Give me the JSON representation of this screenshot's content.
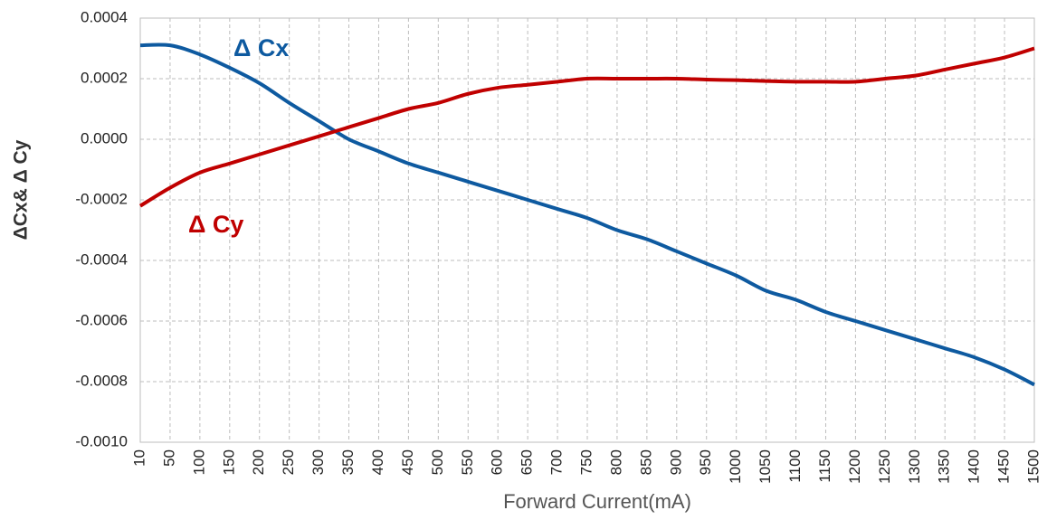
{
  "chart_data": {
    "type": "line",
    "x_label": "Forward Current(mA)",
    "y_label": "ΔCx& Δ Cy",
    "categories": [
      10,
      50,
      100,
      150,
      200,
      250,
      300,
      350,
      400,
      450,
      500,
      550,
      600,
      650,
      700,
      750,
      800,
      850,
      900,
      950,
      1000,
      1050,
      1100,
      1150,
      1200,
      1250,
      1300,
      1350,
      1400,
      1450,
      1500
    ],
    "series": [
      {
        "name": "Δ Cx",
        "color": "#0e5aa0",
        "values": [
          0.00031,
          0.00031,
          0.00028,
          0.000236,
          0.000185,
          0.00012,
          6e-05,
          0.0,
          -4e-05,
          -8e-05,
          -0.00011,
          -0.00014,
          -0.00017,
          -0.0002,
          -0.00023,
          -0.00026,
          -0.0003,
          -0.00033,
          -0.00037,
          -0.00041,
          -0.00045,
          -0.0005,
          -0.00053,
          -0.00057,
          -0.0006,
          -0.00063,
          -0.00066,
          -0.00069,
          -0.00072,
          -0.00076,
          -0.00081
        ]
      },
      {
        "name": "Δ Cy",
        "color": "#c00000",
        "values": [
          -0.00022,
          -0.00016,
          -0.00011,
          -8e-05,
          -5e-05,
          -2e-05,
          1e-05,
          4e-05,
          7e-05,
          0.0001,
          0.00012,
          0.00015,
          0.00017,
          0.00018,
          0.00019,
          0.0002,
          0.0002,
          0.0002,
          0.0002,
          0.000197,
          0.000195,
          0.000192,
          0.00019,
          0.00019,
          0.00019,
          0.0002,
          0.00021,
          0.00023,
          0.00025,
          0.00027,
          0.0003
        ]
      }
    ],
    "ylim": [
      -0.001,
      0.0004
    ],
    "yticks": [
      {
        "value": -0.001,
        "label": "-0.0010"
      },
      {
        "value": -0.0008,
        "label": "-0.0008"
      },
      {
        "value": -0.0006,
        "label": "-0.0006"
      },
      {
        "value": -0.0004,
        "label": "-0.0004"
      },
      {
        "value": -0.0002,
        "label": "-0.0002"
      },
      {
        "value": 0,
        "label": "0.0000"
      },
      {
        "value": 0.0002,
        "label": "0.0002"
      },
      {
        "value": 0.0004,
        "label": "0.0004"
      }
    ],
    "grid": true
  }
}
